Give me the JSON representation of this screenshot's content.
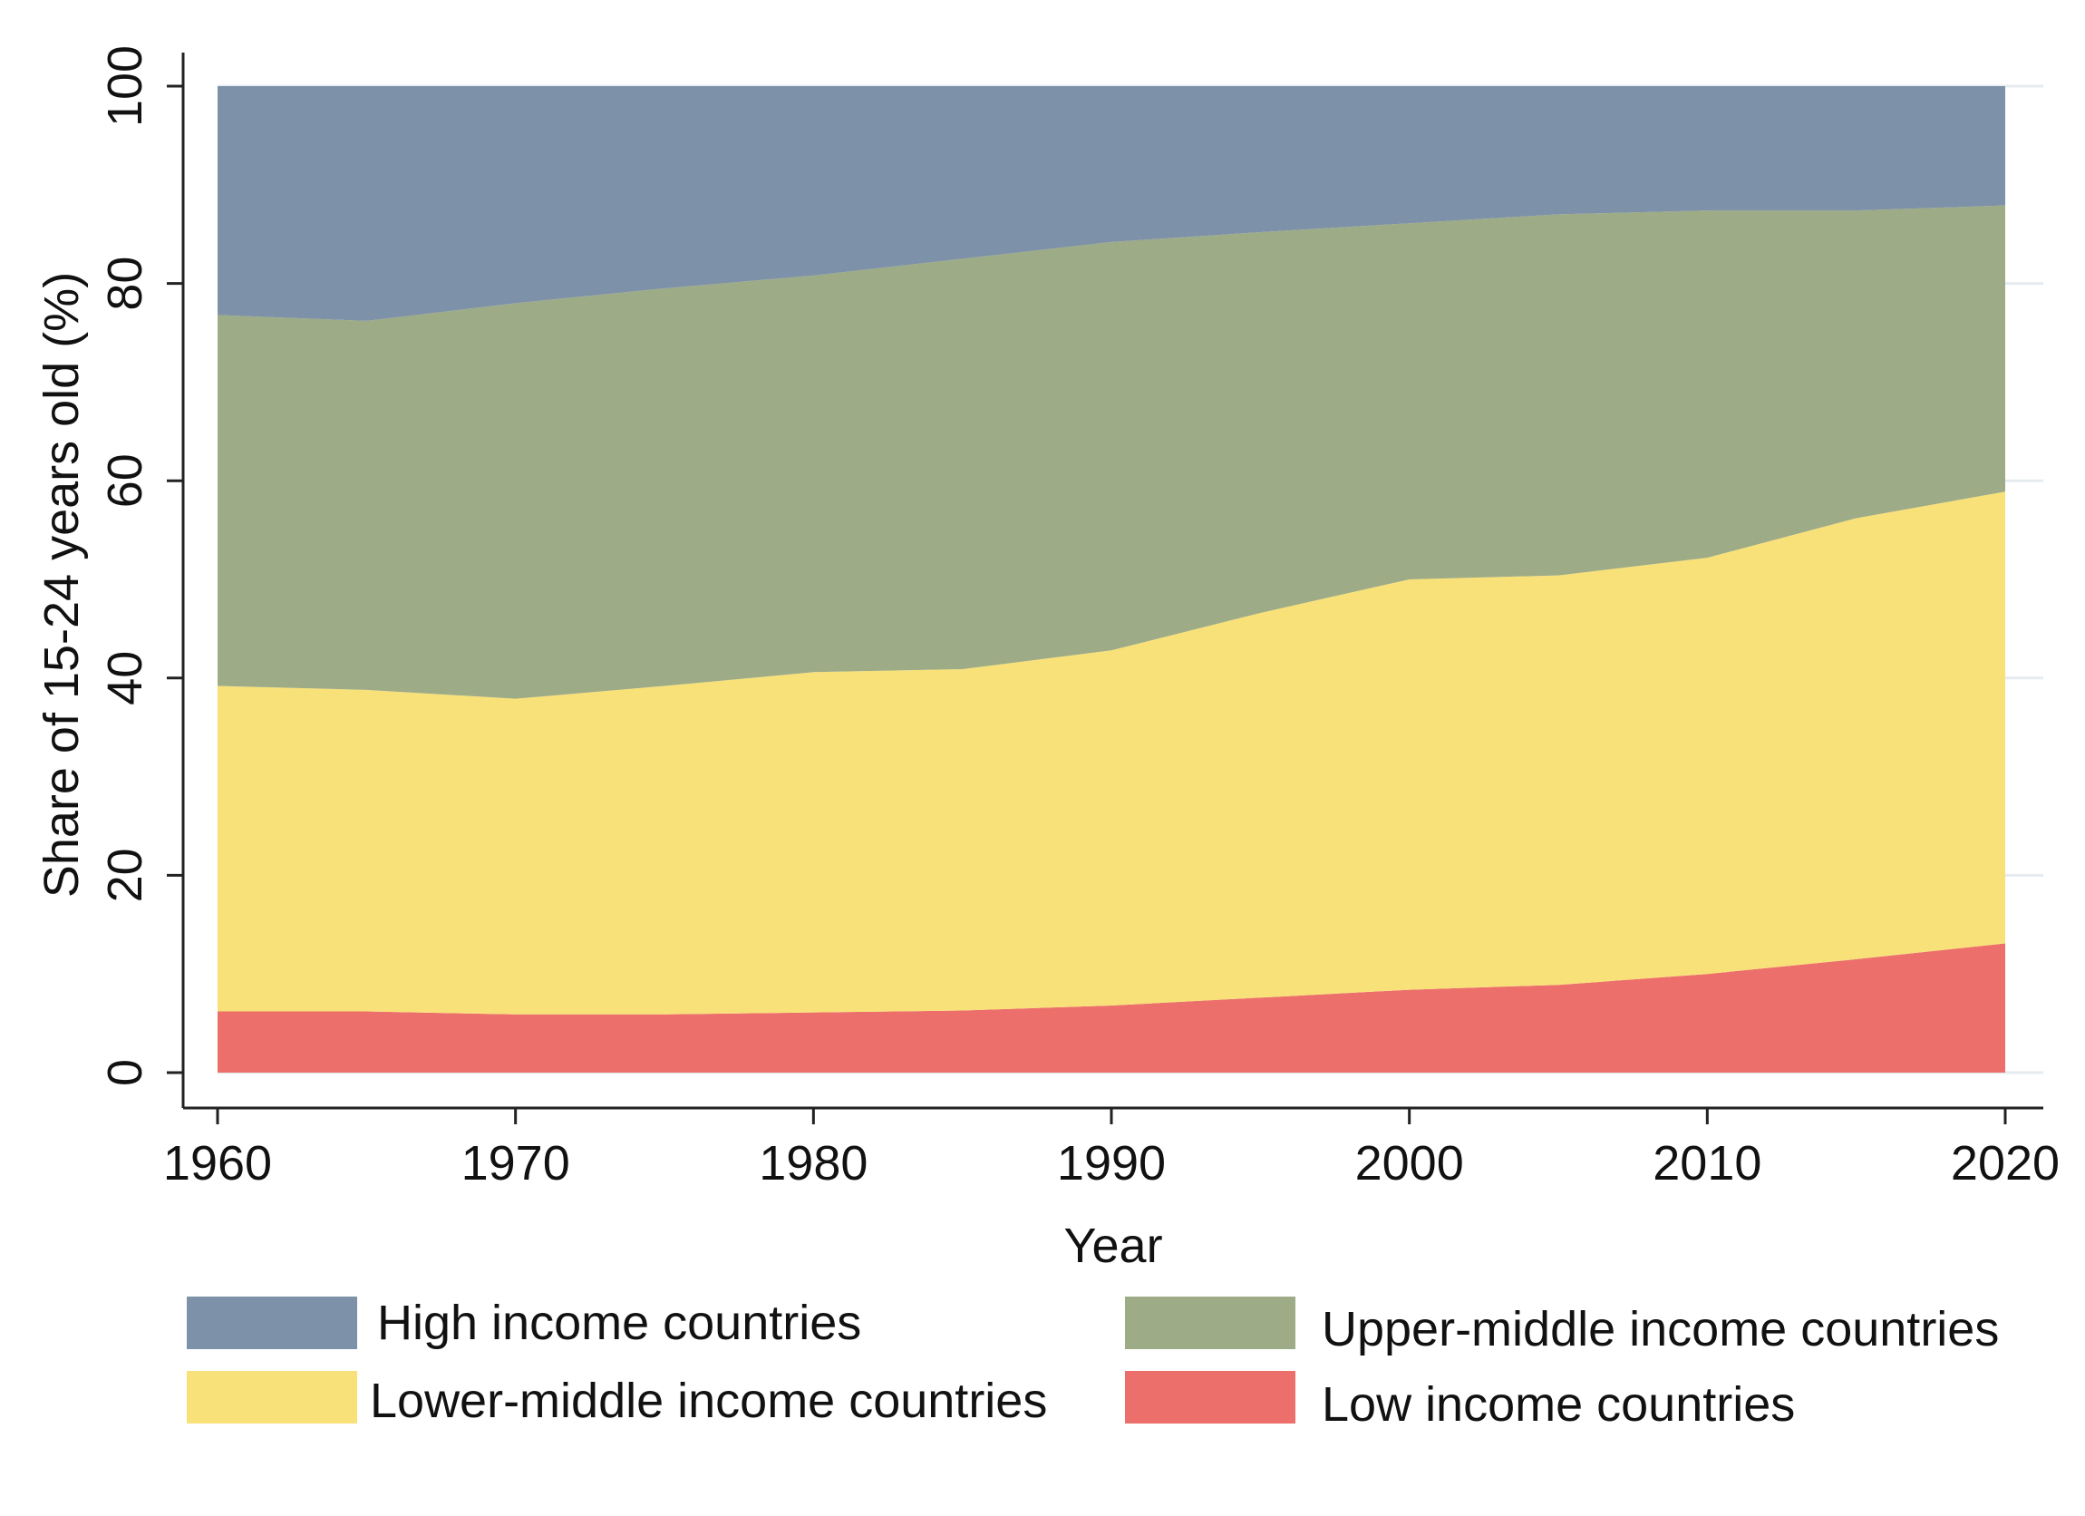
{
  "chart_data": {
    "type": "area",
    "stacked": true,
    "title": "",
    "xlabel": "Year",
    "ylabel": "Share of 15-24 years old (%)",
    "xlim": [
      1960,
      2020
    ],
    "ylim": [
      0,
      100
    ],
    "x_ticks": [
      "1960",
      "1970",
      "1980",
      "1990",
      "2000",
      "2010",
      "2020"
    ],
    "y_ticks": [
      "0",
      "20",
      "40",
      "60",
      "80",
      "100"
    ],
    "grid": "horizontal",
    "legend_position": "bottom",
    "x": [
      1960,
      1965,
      1970,
      1975,
      1980,
      1985,
      1990,
      1995,
      2000,
      2005,
      2010,
      2015,
      2020
    ],
    "series": [
      {
        "name": "Low income countries",
        "color": "#ec6f6b",
        "values": [
          6.2,
          6.2,
          5.9,
          5.9,
          6.1,
          6.3,
          6.8,
          7.6,
          8.4,
          8.9,
          10.0,
          11.5,
          13.1
        ]
      },
      {
        "name": "Lower-middle income countries",
        "color": "#f9e17a",
        "values": [
          33.0,
          32.6,
          32.0,
          33.3,
          34.5,
          34.6,
          36.0,
          39.0,
          41.6,
          41.5,
          42.2,
          44.7,
          45.8
        ]
      },
      {
        "name": "Upper-middle income countries",
        "color": "#9dab86",
        "values": [
          37.6,
          37.4,
          40.1,
          40.3,
          40.2,
          41.6,
          41.4,
          38.6,
          36.1,
          36.6,
          35.2,
          31.2,
          29.0
        ]
      },
      {
        "name": "High income countries",
        "color": "#7d91a8",
        "values": [
          23.2,
          23.8,
          22.0,
          20.5,
          19.2,
          17.5,
          15.8,
          14.8,
          13.9,
          13.0,
          12.6,
          12.6,
          12.1
        ]
      }
    ],
    "legend": [
      {
        "label": "High income countries",
        "color": "#7d91a8"
      },
      {
        "label": "Upper-middle income countries",
        "color": "#9dab86"
      },
      {
        "label": "Lower-middle income countries",
        "color": "#f9e17a"
      },
      {
        "label": "Low income countries",
        "color": "#ec6f6b"
      }
    ]
  }
}
